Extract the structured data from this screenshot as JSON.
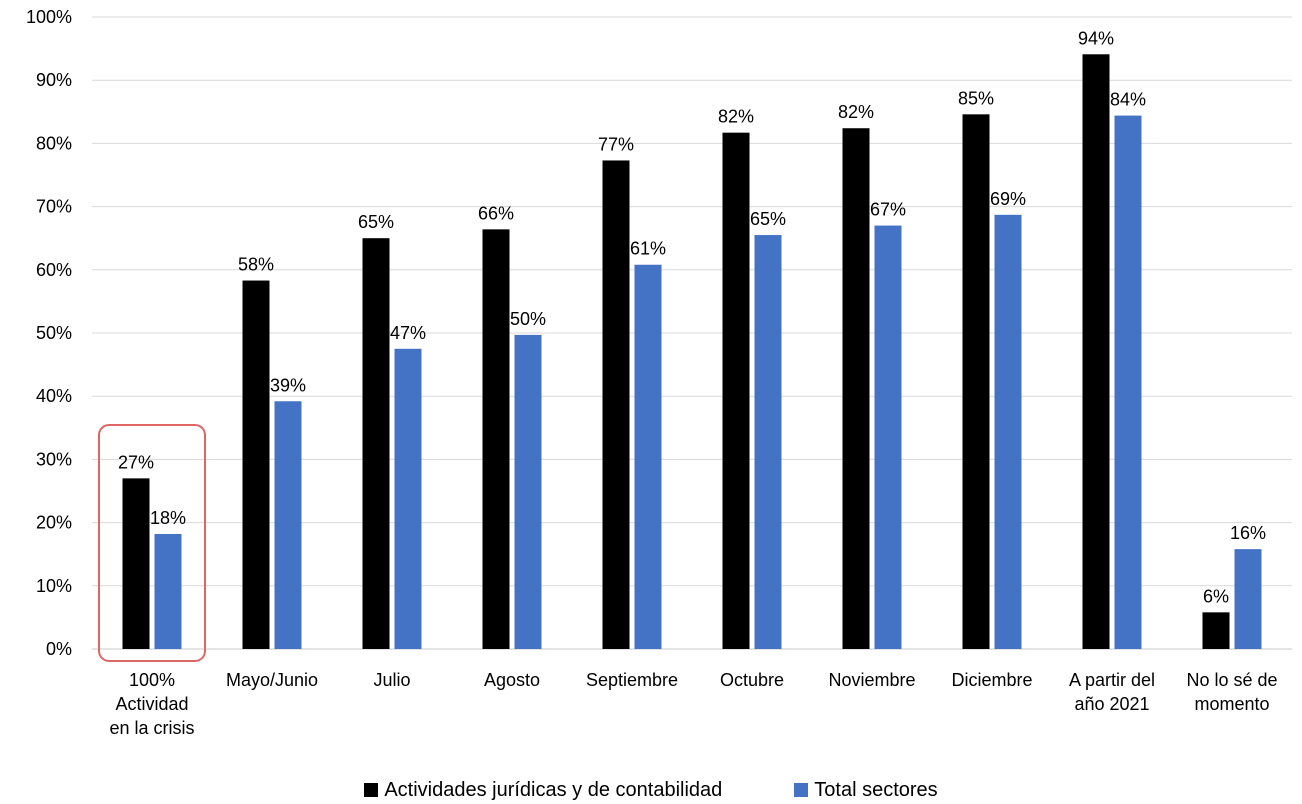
{
  "chart_data": {
    "type": "bar",
    "categories": [
      [
        "100%",
        "Actividad",
        "en la crisis"
      ],
      [
        "Mayo/Junio"
      ],
      [
        "Julio"
      ],
      [
        "Agosto"
      ],
      [
        "Septiembre"
      ],
      [
        "Octubre"
      ],
      [
        "Noviembre"
      ],
      [
        "Diciembre"
      ],
      [
        "A partir del",
        "año 2021"
      ],
      [
        "No lo sé de",
        "momento"
      ]
    ],
    "series": [
      {
        "name": "Actividades jurídicas y de contabilidad",
        "color": "#000000",
        "values": [
          27,
          58.3,
          65,
          66.4,
          77.3,
          81.7,
          82.4,
          84.6,
          94.1,
          5.8
        ],
        "labels": [
          "27%",
          "58%",
          "65%",
          "66%",
          "77%",
          "82%",
          "82%",
          "85%",
          "94%",
          "6%"
        ]
      },
      {
        "name": "Total sectores",
        "color": "#4472C4",
        "values": [
          18.2,
          39.2,
          47.5,
          49.7,
          60.8,
          65.5,
          67,
          68.7,
          84.4,
          15.8
        ],
        "labels": [
          "18%",
          "39%",
          "47%",
          "50%",
          "61%",
          "65%",
          "67%",
          "69%",
          "84%",
          "16%"
        ]
      }
    ],
    "ylim": [
      0,
      100
    ],
    "yticks": [
      "0%",
      "10%",
      "20%",
      "30%",
      "40%",
      "50%",
      "60%",
      "70%",
      "80%",
      "90%",
      "100%"
    ],
    "grid": true,
    "legend_position": "bottom",
    "highlight": {
      "category_index": 0,
      "color": "#E06666"
    }
  }
}
